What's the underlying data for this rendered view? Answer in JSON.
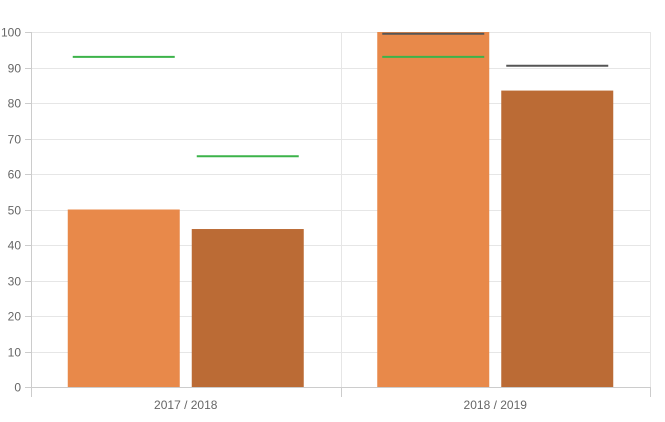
{
  "chart_data": {
    "type": "bar",
    "categories": [
      "2017 / 2018",
      "2018 / 2019"
    ],
    "ylim": [
      0,
      100
    ],
    "y_ticks": [
      0,
      10,
      20,
      30,
      40,
      50,
      60,
      70,
      80,
      90,
      100
    ],
    "grid": true,
    "series": [
      {
        "values": [
          50,
          100
        ],
        "color": "#e8894a"
      },
      {
        "values": [
          44.5,
          83.5
        ],
        "color": "#bb6b35"
      }
    ],
    "target_lines": [
      {
        "series_index": 0,
        "values": [
          93,
          93
        ],
        "color": "#3cb34a"
      },
      {
        "series_index": 1,
        "values": [
          65,
          null
        ],
        "color": "#3cb34a"
      },
      {
        "series_index": 0,
        "values": [
          null,
          99.5
        ],
        "color": "#555555"
      },
      {
        "series_index": 1,
        "values": [
          null,
          90.5
        ],
        "color": "#555555"
      }
    ]
  }
}
